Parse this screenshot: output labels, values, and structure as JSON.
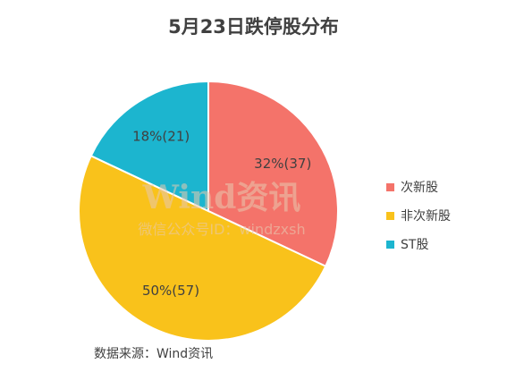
{
  "chart_data": {
    "type": "pie",
    "title": "5月23日跌停股分布",
    "slices": [
      {
        "name": "次新股",
        "percent": 32,
        "count": 37,
        "label": "32%(37)",
        "color": "#f4736a"
      },
      {
        "name": "非次新股",
        "percent": 50,
        "count": 57,
        "label": "50%(57)",
        "color": "#f9c21b"
      },
      {
        "name": "ST股",
        "percent": 18,
        "count": 21,
        "label": "18%(21)",
        "color": "#1cb5cf"
      }
    ],
    "legend_position": "right",
    "start_angle": "12 o'clock",
    "direction": "clockwise"
  },
  "source": "数据来源：Wind资讯",
  "watermark": {
    "main": "Wind资讯",
    "sub": "微信公众号ID：windzxsh"
  }
}
